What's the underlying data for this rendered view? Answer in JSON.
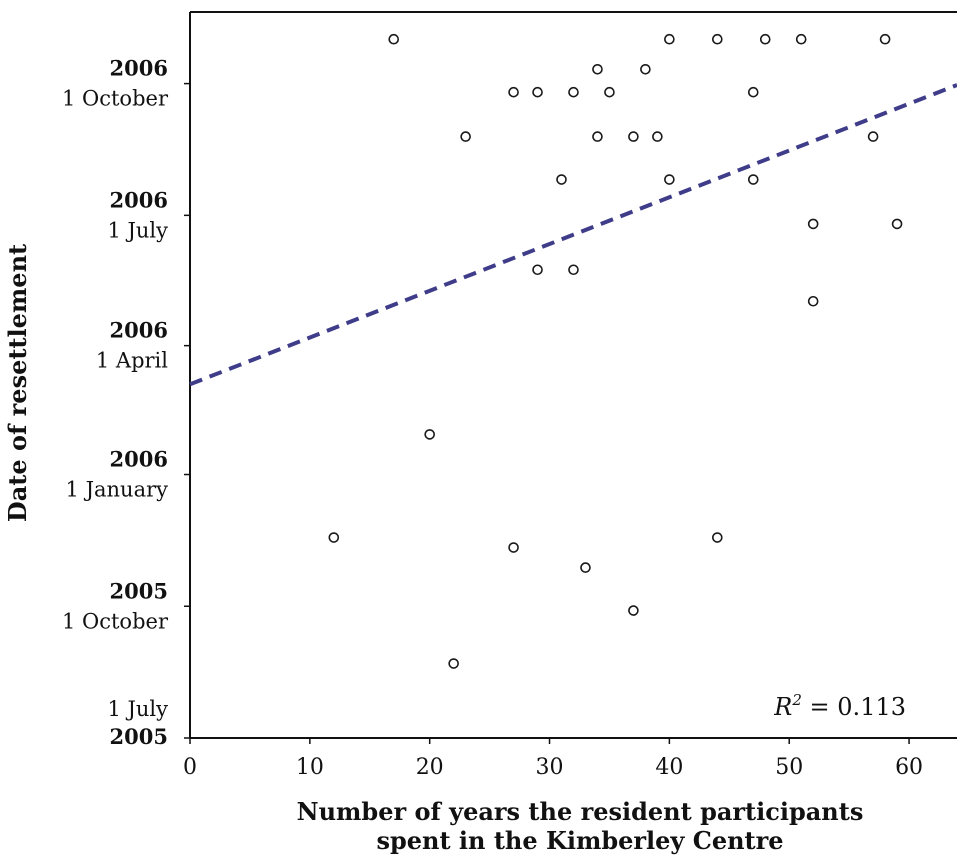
{
  "chart_data": {
    "type": "scatter",
    "title": "",
    "xlabel_lines": [
      "Number of years the resident participants",
      "spent in the Kimberley Centre"
    ],
    "ylabel": "Date of resettlement",
    "xlim": [
      0,
      64
    ],
    "xticks": [
      0,
      10,
      20,
      30,
      40,
      50,
      60
    ],
    "ylim": [
      "2005-07-01",
      "2006-11-20"
    ],
    "yticks": [
      {
        "date": "2005-07-01",
        "day": "1 July",
        "year": "2005"
      },
      {
        "date": "2005-10-01",
        "day": "1 October",
        "year": "2005"
      },
      {
        "date": "2006-01-01",
        "day": "1 January",
        "year": "2006"
      },
      {
        "date": "2006-04-01",
        "day": "1 April",
        "year": "2006"
      },
      {
        "date": "2006-07-01",
        "day": "1 July",
        "year": "2006"
      },
      {
        "date": "2006-10-01",
        "day": "1 October",
        "year": "2006"
      }
    ],
    "grid": false,
    "points": [
      {
        "x": 17,
        "y": "2006-11-01"
      },
      {
        "x": 34,
        "y": "2006-10-11"
      },
      {
        "x": 38,
        "y": "2006-10-11"
      },
      {
        "x": 40,
        "y": "2006-11-01"
      },
      {
        "x": 44,
        "y": "2006-11-01"
      },
      {
        "x": 48,
        "y": "2006-11-01"
      },
      {
        "x": 51,
        "y": "2006-11-01"
      },
      {
        "x": 58,
        "y": "2006-11-01"
      },
      {
        "x": 27,
        "y": "2006-09-25"
      },
      {
        "x": 29,
        "y": "2006-09-25"
      },
      {
        "x": 32,
        "y": "2006-09-25"
      },
      {
        "x": 35,
        "y": "2006-09-25"
      },
      {
        "x": 47,
        "y": "2006-09-25"
      },
      {
        "x": 23,
        "y": "2006-08-25"
      },
      {
        "x": 34,
        "y": "2006-08-25"
      },
      {
        "x": 37,
        "y": "2006-08-25"
      },
      {
        "x": 39,
        "y": "2006-08-25"
      },
      {
        "x": 57,
        "y": "2006-08-25"
      },
      {
        "x": 31,
        "y": "2006-07-26"
      },
      {
        "x": 40,
        "y": "2006-07-26"
      },
      {
        "x": 47,
        "y": "2006-07-26"
      },
      {
        "x": 52,
        "y": "2006-06-25"
      },
      {
        "x": 59,
        "y": "2006-06-25"
      },
      {
        "x": 29,
        "y": "2006-05-24"
      },
      {
        "x": 32,
        "y": "2006-05-24"
      },
      {
        "x": 52,
        "y": "2006-05-02"
      },
      {
        "x": 20,
        "y": "2006-01-29"
      },
      {
        "x": 12,
        "y": "2005-11-18"
      },
      {
        "x": 27,
        "y": "2005-11-11"
      },
      {
        "x": 44,
        "y": "2005-11-18"
      },
      {
        "x": 33,
        "y": "2005-10-28"
      },
      {
        "x": 37,
        "y": "2005-09-28"
      },
      {
        "x": 22,
        "y": "2005-08-22"
      }
    ],
    "fit_line": {
      "x": [
        0,
        64
      ],
      "y": [
        "2006-03-05",
        "2006-09-30"
      ],
      "color": "#3f3d8a",
      "style": "dashed"
    },
    "annotation": {
      "label": "R",
      "sup": "2",
      "value": " = 0.113",
      "position": "bottom-right"
    },
    "colors": {
      "point_stroke": "#1a1a1a",
      "point_fill": "#ffffff",
      "axis": "#111111"
    }
  }
}
